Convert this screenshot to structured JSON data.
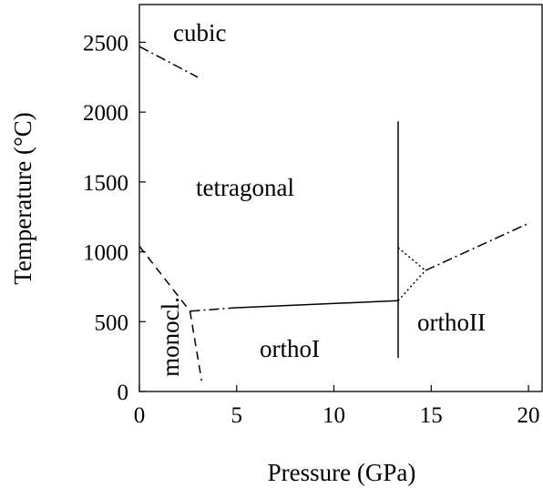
{
  "chart_data": {
    "type": "line",
    "xlabel": "Pressure (GPa)",
    "ylabel": "Temperature (°C)",
    "xlim": [
      0,
      20.7
    ],
    "ylim": [
      0,
      2770
    ],
    "xticks": [
      0,
      5,
      10,
      15,
      20
    ],
    "yticks": [
      0,
      500,
      1000,
      1500,
      2000,
      2500
    ],
    "annotations": [
      "cubic",
      "tetragonal",
      "monocl.",
      "orthoI",
      "orthoII"
    ],
    "series": [
      {
        "style": "dashdot",
        "color": "#000000",
        "x": [
          0,
          3
        ],
        "values": [
          2470,
          2250
        ]
      },
      {
        "style": "dashed",
        "color": "#000000",
        "x": [
          0,
          2.6
        ],
        "values": [
          1040,
          575
        ]
      },
      {
        "style": "dashed",
        "color": "#000000",
        "x": [
          2.6,
          3.2
        ],
        "values": [
          575,
          78
        ]
      },
      {
        "style": "dashdot",
        "color": "#000000",
        "x": [
          2.6,
          5
        ],
        "values": [
          575,
          600
        ]
      },
      {
        "style": "solid",
        "color": "#000000",
        "x": [
          5,
          13.3
        ],
        "values": [
          600,
          650
        ]
      },
      {
        "style": "solid",
        "color": "#000000",
        "x": [
          13.3,
          13.3
        ],
        "values": [
          240,
          1934
        ]
      },
      {
        "style": "dotted",
        "color": "#000000",
        "x": [
          13.3,
          14.7
        ],
        "values": [
          650,
          866
        ]
      },
      {
        "style": "dotted",
        "color": "#000000",
        "x": [
          13.3,
          14.7
        ],
        "values": [
          1030,
          866
        ]
      },
      {
        "style": "dashdot",
        "color": "#000000",
        "x": [
          14.7,
          20
        ],
        "values": [
          866,
          1204
        ]
      }
    ]
  }
}
